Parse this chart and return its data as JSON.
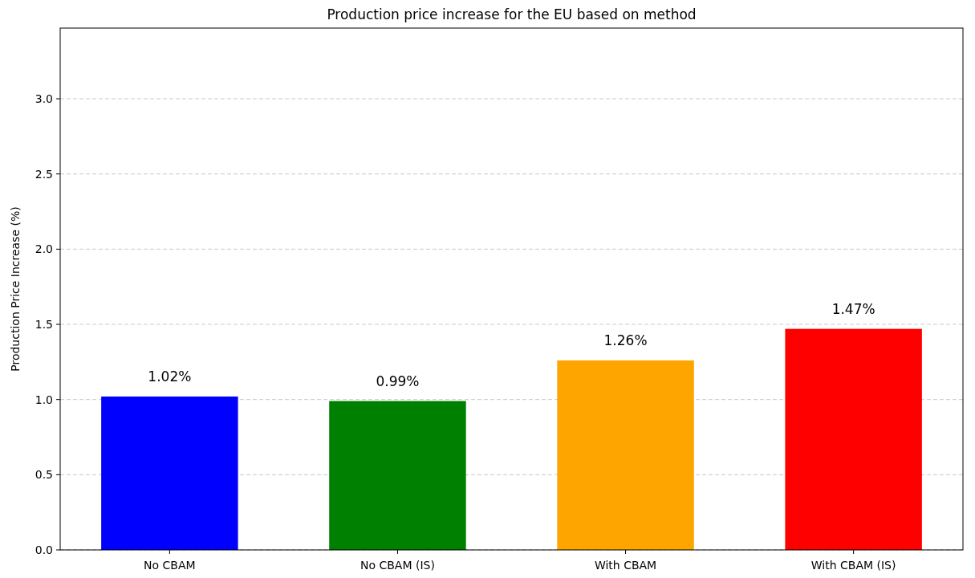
{
  "chart_data": {
    "type": "bar",
    "title": "Production price increase for the EU based on method",
    "ylabel": "Production Price Increase (%)",
    "categories": [
      "No CBAM",
      "No CBAM (IS)",
      "With CBAM",
      "With CBAM (IS)"
    ],
    "values": [
      1.02,
      0.99,
      1.26,
      1.47
    ],
    "colors": [
      "#0000ff",
      "#008000",
      "#ffa500",
      "#ff0000"
    ],
    "value_labels": [
      "1.02%",
      "0.99%",
      "1.26%",
      "1.47%"
    ],
    "ylim": [
      0,
      3.47
    ],
    "yticks": [
      {
        "value": 0,
        "label": "0.0"
      },
      {
        "value": 0.5,
        "label": "0.5"
      },
      {
        "value": 1,
        "label": "1.0"
      },
      {
        "value": 1.5,
        "label": "1.5"
      },
      {
        "value": 2,
        "label": "2.0"
      },
      {
        "value": 2.5,
        "label": "2.5"
      },
      {
        "value": 3,
        "label": "3.0"
      }
    ],
    "grid": "y"
  }
}
